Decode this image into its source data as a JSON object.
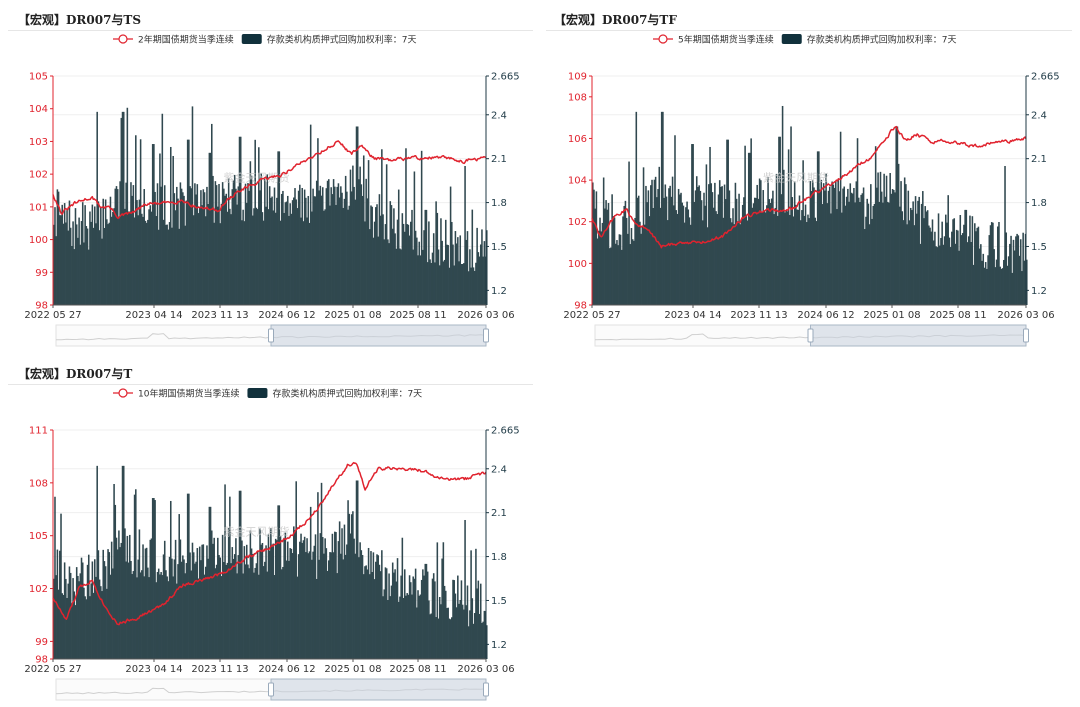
{
  "watermark": "紫金天风期货",
  "colors": {
    "price": "#e0232e",
    "rate": "#30484f",
    "rate_legend": "#11313c",
    "left_axis": "#e0232e",
    "right_axis": "#1f3a46",
    "slider": "#c9d2de",
    "slider_handle": "#9aaabb"
  },
  "x_ticks": [
    "2022 05 27",
    "2023 04 14",
    "2023 11 13",
    "2024 06 12",
    "2025 01 08",
    "2025 08 11",
    "2026 03 06"
  ],
  "chart_data": [
    {
      "id": "ts",
      "type": "line+bar",
      "title": "【宏观】DR007与TS",
      "series": [
        {
          "name": "2年期国债期货当季连续",
          "type": "line",
          "axis": "left",
          "anchors": [
            [
              0,
              101.4
            ],
            [
              0.02,
              100.8
            ],
            [
              0.05,
              101.1
            ],
            [
              0.09,
              101.3
            ],
            [
              0.11,
              101.0
            ],
            [
              0.13,
              101.0
            ],
            [
              0.15,
              100.7
            ],
            [
              0.18,
              100.8
            ],
            [
              0.22,
              101.1
            ],
            [
              0.25,
              101.1
            ],
            [
              0.3,
              101.2
            ],
            [
              0.33,
              101.0
            ],
            [
              0.38,
              100.9
            ],
            [
              0.42,
              101.4
            ],
            [
              0.48,
              101.8
            ],
            [
              0.53,
              102.0
            ],
            [
              0.58,
              102.4
            ],
            [
              0.62,
              102.7
            ],
            [
              0.66,
              103.0
            ],
            [
              0.69,
              102.6
            ],
            [
              0.71,
              102.9
            ],
            [
              0.74,
              102.5
            ],
            [
              0.78,
              102.4
            ],
            [
              0.82,
              102.5
            ],
            [
              0.9,
              102.5
            ],
            [
              0.95,
              102.4
            ],
            [
              1.0,
              102.5
            ]
          ]
        },
        {
          "name": "存款类机构质押式回购加权利率：7天",
          "type": "bar",
          "axis": "right",
          "anchors": [
            [
              0,
              1.72
            ],
            [
              0.05,
              1.6
            ],
            [
              0.1,
              1.65
            ],
            [
              0.15,
              1.82
            ],
            [
              0.2,
              1.8
            ],
            [
              0.25,
              1.75
            ],
            [
              0.35,
              1.8
            ],
            [
              0.45,
              1.82
            ],
            [
              0.55,
              1.82
            ],
            [
              0.62,
              1.75
            ],
            [
              0.66,
              1.85
            ],
            [
              0.7,
              1.95
            ],
            [
              0.73,
              1.72
            ],
            [
              0.78,
              1.62
            ],
            [
              0.85,
              1.55
            ],
            [
              0.9,
              1.5
            ],
            [
              1.0,
              1.45
            ]
          ],
          "spikes": [
            [
              0.1,
              2.42
            ],
            [
              0.16,
              2.42
            ],
            [
              0.19,
              2.26
            ],
            [
              0.23,
              2.2
            ],
            [
              0.27,
              2.18
            ],
            [
              0.31,
              2.23
            ],
            [
              0.36,
              2.14
            ],
            [
              0.43,
              2.25
            ],
            [
              0.52,
              2.15
            ],
            [
              0.61,
              2.24
            ],
            [
              0.7,
              2.32
            ],
            [
              0.86,
              1.75
            ],
            [
              0.95,
              2.05
            ]
          ]
        }
      ],
      "left_axis": {
        "ticks": [
          "98",
          "99",
          "100",
          "101",
          "102",
          "103",
          "104",
          "105"
        ],
        "range": [
          98,
          105
        ]
      },
      "right_axis": {
        "ticks": [
          "1.2",
          "1.5",
          "1.8",
          "2.1",
          "2.4",
          "2.665"
        ],
        "range": [
          1.1,
          2.665
        ]
      },
      "x_range": [
        "2022 05 27",
        "2026 03 06"
      ],
      "zoom_window": [
        0.5,
        1.0
      ]
    },
    {
      "id": "tf",
      "type": "line+bar",
      "title": "【宏观】DR007与TF",
      "series": [
        {
          "name": "5年期国债期货当季连续",
          "type": "line",
          "axis": "left",
          "anchors": [
            [
              0,
              102.2
            ],
            [
              0.02,
              101.2
            ],
            [
              0.05,
              102.2
            ],
            [
              0.08,
              102.6
            ],
            [
              0.1,
              101.9
            ],
            [
              0.13,
              101.6
            ],
            [
              0.16,
              100.8
            ],
            [
              0.2,
              101.0
            ],
            [
              0.25,
              101.0
            ],
            [
              0.3,
              101.3
            ],
            [
              0.35,
              102.2
            ],
            [
              0.4,
              102.6
            ],
            [
              0.45,
              102.5
            ],
            [
              0.5,
              103.2
            ],
            [
              0.55,
              103.8
            ],
            [
              0.6,
              104.5
            ],
            [
              0.65,
              105.2
            ],
            [
              0.68,
              106.1
            ],
            [
              0.7,
              106.6
            ],
            [
              0.72,
              105.9
            ],
            [
              0.75,
              106.2
            ],
            [
              0.78,
              105.8
            ],
            [
              0.82,
              105.9
            ],
            [
              0.88,
              105.6
            ],
            [
              0.93,
              105.8
            ],
            [
              1.0,
              106.0
            ]
          ]
        },
        {
          "name": "存款类机构质押式回购加权利率：7天",
          "type": "bar",
          "axis": "right",
          "anchors": [
            [
              0,
              1.72
            ],
            [
              0.05,
              1.6
            ],
            [
              0.1,
              1.65
            ],
            [
              0.15,
              1.82
            ],
            [
              0.2,
              1.8
            ],
            [
              0.25,
              1.75
            ],
            [
              0.35,
              1.8
            ],
            [
              0.45,
              1.82
            ],
            [
              0.55,
              1.82
            ],
            [
              0.62,
              1.75
            ],
            [
              0.66,
              1.85
            ],
            [
              0.7,
              1.95
            ],
            [
              0.73,
              1.72
            ],
            [
              0.78,
              1.62
            ],
            [
              0.85,
              1.55
            ],
            [
              0.9,
              1.5
            ],
            [
              1.0,
              1.45
            ]
          ],
          "spikes": [
            [
              0.1,
              2.42
            ],
            [
              0.16,
              2.42
            ],
            [
              0.19,
              2.26
            ],
            [
              0.23,
              2.2
            ],
            [
              0.27,
              2.18
            ],
            [
              0.31,
              2.23
            ],
            [
              0.36,
              2.14
            ],
            [
              0.43,
              2.25
            ],
            [
              0.52,
              2.15
            ],
            [
              0.61,
              2.24
            ],
            [
              0.7,
              2.32
            ],
            [
              0.86,
              1.75
            ],
            [
              0.95,
              2.05
            ]
          ]
        }
      ],
      "left_axis": {
        "ticks": [
          "98",
          "100",
          "102",
          "104",
          "106",
          "108",
          "109"
        ],
        "range": [
          98,
          109
        ]
      },
      "right_axis": {
        "ticks": [
          "1.2",
          "1.5",
          "1.8",
          "2.1",
          "2.4",
          "2.665"
        ],
        "range": [
          1.1,
          2.665
        ]
      },
      "x_range": [
        "2022 05 27",
        "2026 03 06"
      ],
      "zoom_window": [
        0.5,
        1.0
      ]
    },
    {
      "id": "t",
      "type": "line+bar",
      "title": "【宏观】DR007与T",
      "series": [
        {
          "name": "10年期国债期货当季连续",
          "type": "line",
          "axis": "left",
          "anchors": [
            [
              0,
              101.5
            ],
            [
              0.03,
              100.2
            ],
            [
              0.06,
              102.0
            ],
            [
              0.09,
              102.5
            ],
            [
              0.12,
              101.0
            ],
            [
              0.15,
              100.0
            ],
            [
              0.2,
              100.4
            ],
            [
              0.25,
              101.0
            ],
            [
              0.3,
              102.2
            ],
            [
              0.35,
              102.5
            ],
            [
              0.4,
              103.0
            ],
            [
              0.45,
              103.8
            ],
            [
              0.5,
              104.3
            ],
            [
              0.55,
              105.0
            ],
            [
              0.6,
              106.2
            ],
            [
              0.65,
              108.0
            ],
            [
              0.68,
              109.0
            ],
            [
              0.7,
              109.2
            ],
            [
              0.72,
              107.6
            ],
            [
              0.75,
              108.8
            ],
            [
              0.8,
              108.8
            ],
            [
              0.85,
              108.7
            ],
            [
              0.9,
              108.2
            ],
            [
              0.95,
              108.2
            ],
            [
              1.0,
              108.6
            ]
          ]
        },
        {
          "name": "存款类机构质押式回购加权利率：7天",
          "type": "bar",
          "axis": "right",
          "anchors": [
            [
              0,
              1.72
            ],
            [
              0.05,
              1.6
            ],
            [
              0.1,
              1.65
            ],
            [
              0.15,
              1.82
            ],
            [
              0.2,
              1.8
            ],
            [
              0.25,
              1.75
            ],
            [
              0.35,
              1.8
            ],
            [
              0.45,
              1.82
            ],
            [
              0.55,
              1.82
            ],
            [
              0.62,
              1.75
            ],
            [
              0.66,
              1.85
            ],
            [
              0.7,
              1.95
            ],
            [
              0.73,
              1.72
            ],
            [
              0.78,
              1.62
            ],
            [
              0.85,
              1.55
            ],
            [
              0.9,
              1.5
            ],
            [
              1.0,
              1.45
            ]
          ],
          "spikes": [
            [
              0.1,
              2.42
            ],
            [
              0.16,
              2.42
            ],
            [
              0.19,
              2.26
            ],
            [
              0.23,
              2.2
            ],
            [
              0.27,
              2.18
            ],
            [
              0.31,
              2.23
            ],
            [
              0.36,
              2.14
            ],
            [
              0.43,
              2.25
            ],
            [
              0.52,
              2.15
            ],
            [
              0.61,
              2.24
            ],
            [
              0.7,
              2.32
            ],
            [
              0.86,
              1.75
            ],
            [
              0.95,
              2.05
            ]
          ]
        }
      ],
      "left_axis": {
        "ticks": [
          "98",
          "99",
          "102",
          "105",
          "108",
          "111"
        ],
        "range": [
          98,
          111
        ]
      },
      "right_axis": {
        "ticks": [
          "1.2",
          "1.5",
          "1.8",
          "2.1",
          "2.4",
          "2.665"
        ],
        "range": [
          1.1,
          2.665
        ]
      },
      "x_range": [
        "2022 05 27",
        "2026 03 06"
      ],
      "zoom_window": [
        0.5,
        1.0
      ]
    }
  ]
}
